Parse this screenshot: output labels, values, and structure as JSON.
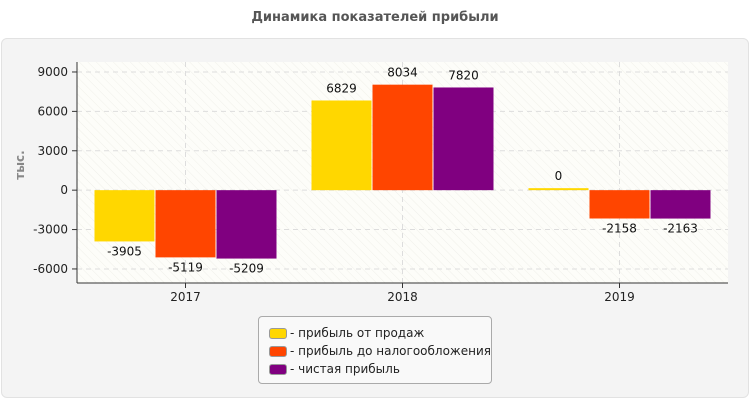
{
  "chart_data": {
    "type": "bar",
    "title": "Динамика показателей прибыли",
    "ylabel": "тыс.",
    "xlabel": "",
    "categories": [
      "2017",
      "2018",
      "2019"
    ],
    "series": [
      {
        "name": "прибыль от продаж",
        "color": "#FFD700",
        "values": [
          -3905,
          6829,
          0
        ]
      },
      {
        "name": "прибыль до налогообложения",
        "color": "#FF4500",
        "values": [
          -5119,
          8034,
          -2158
        ]
      },
      {
        "name": "чистая прибыль",
        "color": "#800080",
        "values": [
          -5209,
          7820,
          -2163
        ]
      }
    ],
    "yticks": [
      -6000,
      -3000,
      0,
      3000,
      6000,
      9000
    ],
    "ylim": [
      -7070,
      9760
    ],
    "grid": true,
    "legend_position": "bottom",
    "legend_prefix": "- "
  }
}
